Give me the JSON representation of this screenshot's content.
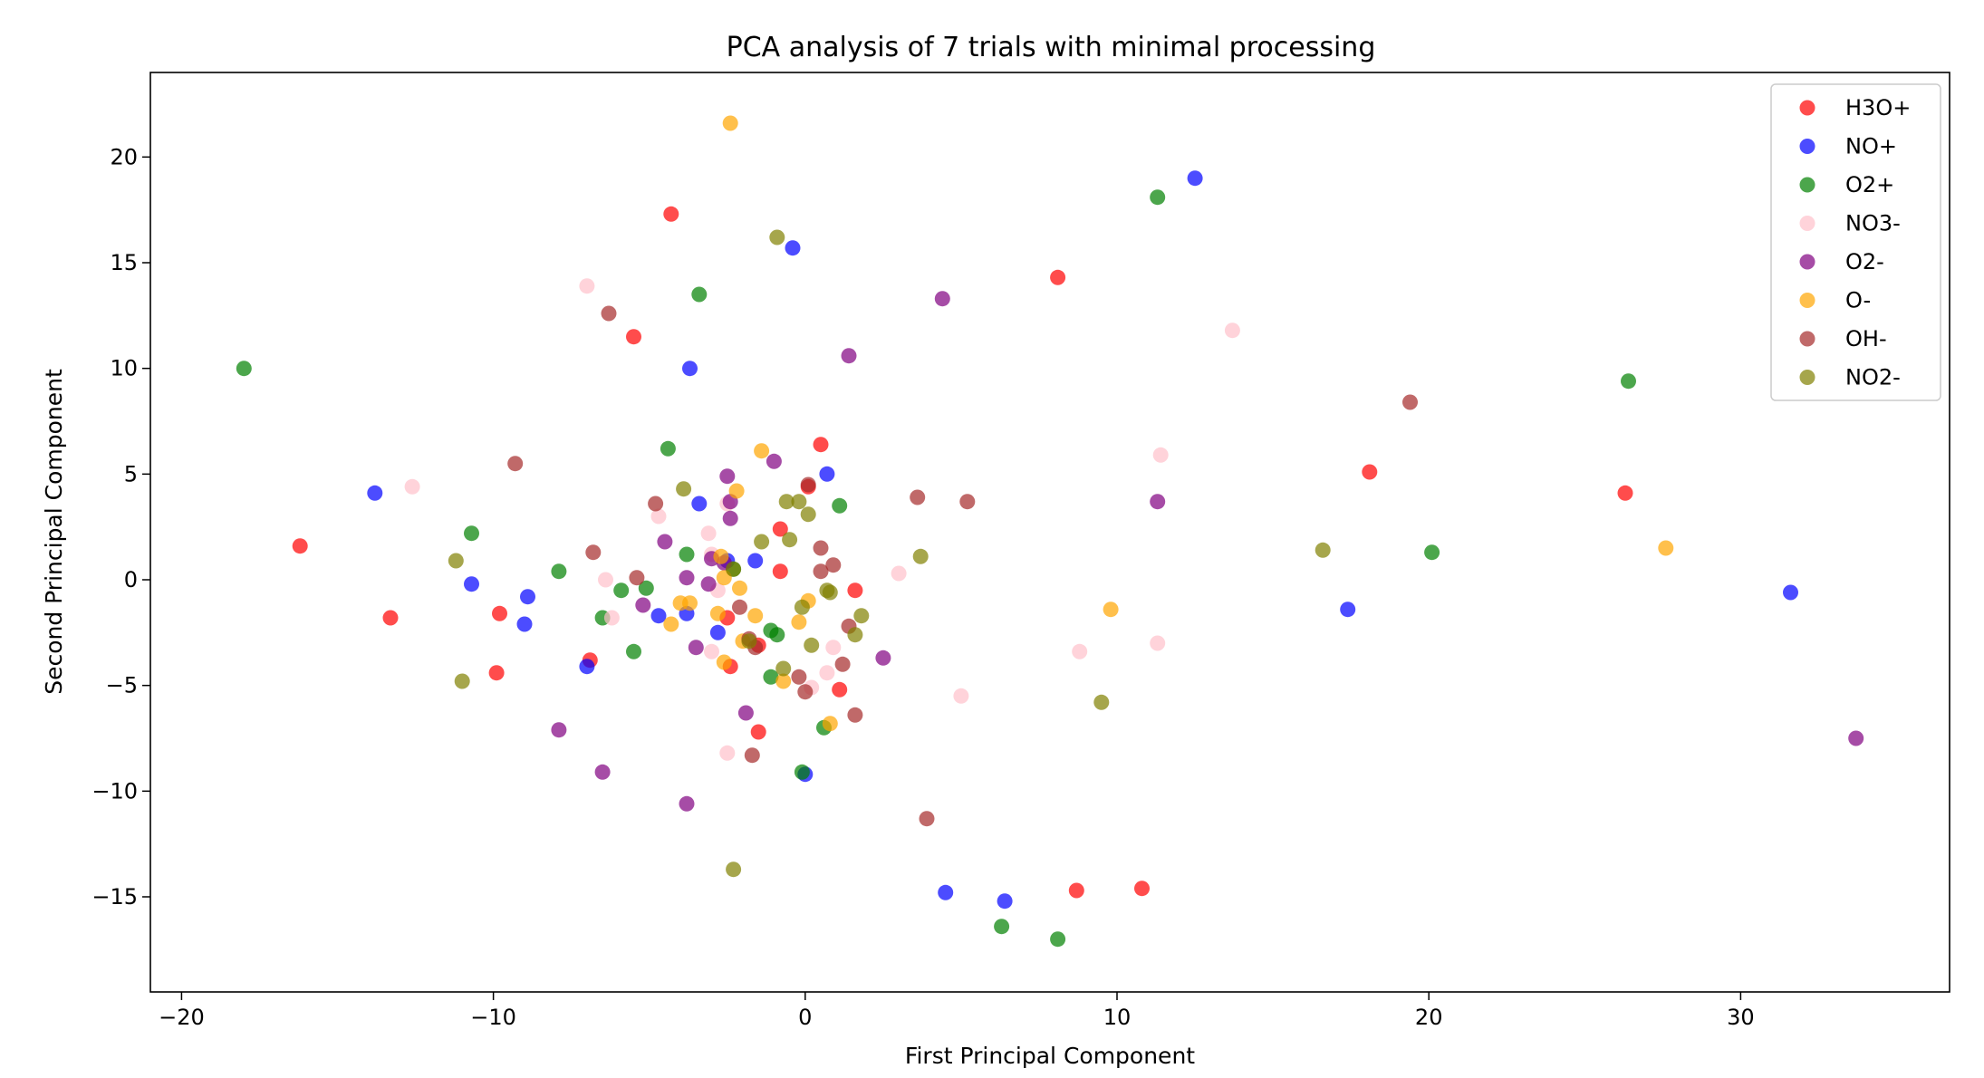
{
  "chart_data": {
    "type": "scatter",
    "title": "PCA analysis of 7 trials with minimal processing",
    "xlabel": "First Principal Component",
    "ylabel": "Second Principal Component",
    "xlim": [
      -21,
      36.7
    ],
    "ylim": [
      -19.5,
      24
    ],
    "xticks": [
      -20,
      -10,
      0,
      10,
      20,
      30
    ],
    "yticks": [
      -15,
      -10,
      -5,
      0,
      5,
      10,
      15,
      20
    ],
    "xtick_labels": [
      "−20",
      "−10",
      "0",
      "10",
      "20",
      "30"
    ],
    "ytick_labels": [
      "−15",
      "−10",
      "−5",
      "0",
      "5",
      "10",
      "15",
      "20"
    ],
    "grid": false,
    "legend_position": "top-right",
    "series": [
      {
        "name": "H3O+",
        "color": "#ff0000",
        "points": [
          [
            -4.3,
            17.3
          ],
          [
            -5.5,
            11.5
          ],
          [
            8.1,
            14.3
          ],
          [
            0.5,
            6.4
          ],
          [
            -16.2,
            1.6
          ],
          [
            -13.3,
            -1.8
          ],
          [
            -9.8,
            -1.6
          ],
          [
            -9.9,
            -4.4
          ],
          [
            -6.9,
            -3.8
          ],
          [
            -0.8,
            2.4
          ],
          [
            -0.8,
            0.4
          ],
          [
            1.6,
            -0.5
          ],
          [
            1.1,
            -5.2
          ],
          [
            -2.4,
            -4.1
          ],
          [
            -1.5,
            -7.2
          ],
          [
            -1.5,
            -3.1
          ],
          [
            8.7,
            -14.7
          ],
          [
            10.8,
            -14.6
          ],
          [
            18.1,
            5.1
          ],
          [
            26.3,
            4.1
          ],
          [
            0.1,
            4.4
          ],
          [
            -2.5,
            -1.8
          ]
        ]
      },
      {
        "name": "NO+",
        "color": "#0000ff",
        "points": [
          [
            12.5,
            19.0
          ],
          [
            -0.4,
            15.7
          ],
          [
            -3.7,
            10.0
          ],
          [
            -13.8,
            4.1
          ],
          [
            -10.7,
            -0.2
          ],
          [
            -8.9,
            -0.8
          ],
          [
            -9.0,
            -2.1
          ],
          [
            -7.0,
            -4.1
          ],
          [
            -4.7,
            -1.7
          ],
          [
            -3.8,
            -1.6
          ],
          [
            -3.4,
            3.6
          ],
          [
            -2.8,
            -2.5
          ],
          [
            -1.6,
            0.9
          ],
          [
            0.7,
            5.0
          ],
          [
            0.0,
            -9.2
          ],
          [
            4.5,
            -14.8
          ],
          [
            6.4,
            -15.2
          ],
          [
            17.4,
            -1.4
          ],
          [
            31.6,
            -0.6
          ],
          [
            -2.5,
            0.9
          ]
        ]
      },
      {
        "name": "O2+",
        "color": "#008000",
        "points": [
          [
            -18.0,
            10.0
          ],
          [
            -3.4,
            13.5
          ],
          [
            11.3,
            18.1
          ],
          [
            26.4,
            9.4
          ],
          [
            -4.4,
            6.2
          ],
          [
            -10.7,
            2.2
          ],
          [
            -7.9,
            0.4
          ],
          [
            -6.5,
            -1.8
          ],
          [
            -5.9,
            -0.5
          ],
          [
            -5.5,
            -3.4
          ],
          [
            -5.1,
            -0.4
          ],
          [
            -3.8,
            1.2
          ],
          [
            -1.1,
            -2.4
          ],
          [
            -0.9,
            -2.6
          ],
          [
            -1.1,
            -4.6
          ],
          [
            0.6,
            -7.0
          ],
          [
            -0.1,
            -9.1
          ],
          [
            1.1,
            3.5
          ],
          [
            6.3,
            -16.4
          ],
          [
            8.1,
            -17.0
          ],
          [
            20.1,
            1.3
          ],
          [
            -2.3,
            0.5
          ]
        ]
      },
      {
        "name": "NO3-",
        "color": "#ffc0cb",
        "points": [
          [
            -7.0,
            13.9
          ],
          [
            -12.6,
            4.4
          ],
          [
            -6.4,
            0.0
          ],
          [
            -6.2,
            -1.8
          ],
          [
            -4.7,
            3.0
          ],
          [
            -3.1,
            2.2
          ],
          [
            -3.0,
            1.2
          ],
          [
            -2.5,
            3.6
          ],
          [
            -3.0,
            -3.4
          ],
          [
            -2.5,
            -8.2
          ],
          [
            0.2,
            -5.1
          ],
          [
            0.7,
            -4.4
          ],
          [
            0.9,
            -3.2
          ],
          [
            3.0,
            0.3
          ],
          [
            5.0,
            -5.5
          ],
          [
            8.8,
            -3.4
          ],
          [
            11.3,
            -3.0
          ],
          [
            11.4,
            5.9
          ],
          [
            13.7,
            11.8
          ],
          [
            -2.8,
            -0.5
          ]
        ]
      },
      {
        "name": "O2-",
        "color": "#800080",
        "points": [
          [
            4.4,
            13.3
          ],
          [
            1.4,
            10.6
          ],
          [
            -1.0,
            5.6
          ],
          [
            -2.5,
            4.9
          ],
          [
            -2.4,
            3.7
          ],
          [
            -2.4,
            2.9
          ],
          [
            -4.5,
            1.8
          ],
          [
            -3.0,
            1.0
          ],
          [
            -3.8,
            0.1
          ],
          [
            -3.1,
            -0.2
          ],
          [
            -5.2,
            -1.2
          ],
          [
            -3.5,
            -3.2
          ],
          [
            2.5,
            -3.7
          ],
          [
            -1.9,
            -6.3
          ],
          [
            -7.9,
            -7.1
          ],
          [
            -6.5,
            -9.1
          ],
          [
            -3.8,
            -10.6
          ],
          [
            11.3,
            3.7
          ],
          [
            33.7,
            -7.5
          ],
          [
            -2.6,
            0.8
          ]
        ]
      },
      {
        "name": "O-",
        "color": "#ffa500",
        "points": [
          [
            -2.4,
            21.6
          ],
          [
            -1.4,
            6.1
          ],
          [
            -2.2,
            4.2
          ],
          [
            -2.7,
            1.1
          ],
          [
            -2.6,
            0.1
          ],
          [
            -2.1,
            -0.4
          ],
          [
            -4.0,
            -1.1
          ],
          [
            -4.3,
            -2.1
          ],
          [
            -3.7,
            -1.1
          ],
          [
            -2.8,
            -1.6
          ],
          [
            -1.6,
            -1.7
          ],
          [
            -0.2,
            -2.0
          ],
          [
            0.1,
            -1.0
          ],
          [
            -0.7,
            -4.8
          ],
          [
            -2.6,
            -3.9
          ],
          [
            0.8,
            -6.8
          ],
          [
            9.8,
            -1.4
          ],
          [
            27.6,
            1.5
          ],
          [
            -2.0,
            -2.9
          ]
        ]
      },
      {
        "name": "OH-",
        "color": "#a52a2a",
        "points": [
          [
            -6.3,
            12.6
          ],
          [
            -9.3,
            5.5
          ],
          [
            -4.8,
            3.6
          ],
          [
            -6.8,
            1.3
          ],
          [
            -5.4,
            0.1
          ],
          [
            3.6,
            3.9
          ],
          [
            5.2,
            3.7
          ],
          [
            0.1,
            4.5
          ],
          [
            0.5,
            1.5
          ],
          [
            0.9,
            0.7
          ],
          [
            0.5,
            0.4
          ],
          [
            1.2,
            -4.0
          ],
          [
            1.4,
            -2.2
          ],
          [
            1.6,
            -6.4
          ],
          [
            -0.2,
            -4.6
          ],
          [
            0.0,
            -5.3
          ],
          [
            -2.1,
            -1.3
          ],
          [
            -1.8,
            -2.8
          ],
          [
            -1.7,
            -8.3
          ],
          [
            3.9,
            -11.3
          ],
          [
            19.4,
            8.4
          ],
          [
            -1.6,
            -3.2
          ]
        ]
      },
      {
        "name": "NO2-",
        "color": "#808000",
        "points": [
          [
            -0.9,
            16.2
          ],
          [
            -3.9,
            4.3
          ],
          [
            -0.6,
            3.7
          ],
          [
            -0.2,
            3.7
          ],
          [
            0.1,
            3.1
          ],
          [
            -0.5,
            1.9
          ],
          [
            -1.4,
            1.8
          ],
          [
            -2.3,
            0.5
          ],
          [
            -11.2,
            0.9
          ],
          [
            -11.0,
            -4.8
          ],
          [
            3.7,
            1.1
          ],
          [
            0.7,
            -0.5
          ],
          [
            0.8,
            -0.6
          ],
          [
            1.8,
            -1.7
          ],
          [
            1.6,
            -2.6
          ],
          [
            0.2,
            -3.1
          ],
          [
            -0.7,
            -4.2
          ],
          [
            -0.1,
            -1.3
          ],
          [
            9.5,
            -5.8
          ],
          [
            -2.3,
            -13.7
          ],
          [
            16.6,
            1.4
          ],
          [
            -1.8,
            -2.9
          ]
        ]
      }
    ]
  }
}
